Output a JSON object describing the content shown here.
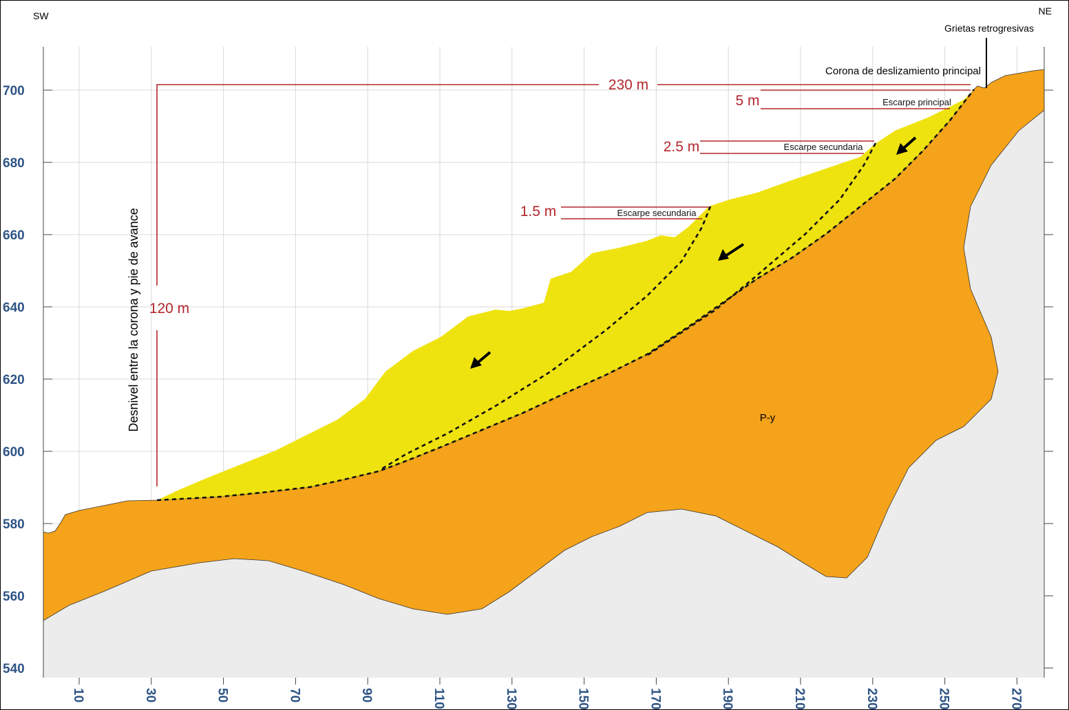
{
  "header": {
    "left": "SW",
    "right": "NE"
  },
  "axes": {
    "y_ticks": [
      700,
      680,
      660,
      640,
      620,
      600,
      580,
      560,
      540
    ],
    "x_ticks": [
      10,
      30,
      50,
      70,
      90,
      110,
      130,
      150,
      170,
      190,
      210,
      230,
      250,
      270
    ]
  },
  "annotations": {
    "grietas": "Grietas retrogresivas",
    "corona": "Corona de deslizamiento principal",
    "escarpe_principal": "Escarpe principal",
    "escarpe_secundaria_1": "Escarpe secundaria",
    "escarpe_secundaria_2": "Escarpe secundaria",
    "desnivel": "Desnivel entre la corona y pie de avance",
    "unit": "P-y"
  },
  "dimensions": {
    "length": "230 m",
    "height": "120 m",
    "escarpe_principal": "5 m",
    "escarpe_secundaria_1": "2.5 m",
    "escarpe_secundaria_2": "1.5 m"
  }
}
